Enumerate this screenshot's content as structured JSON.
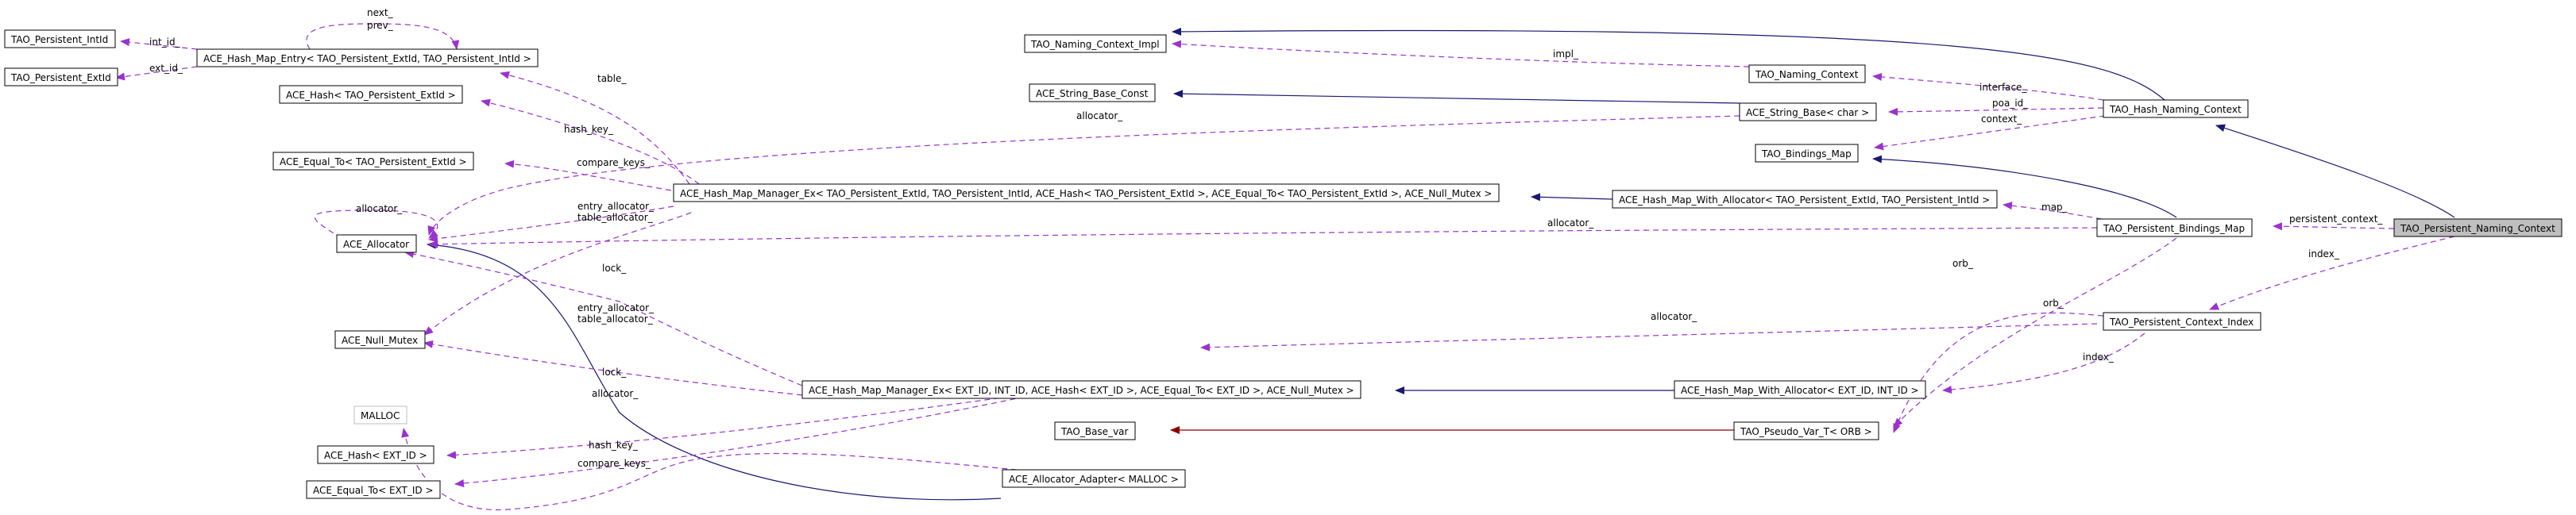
{
  "colors": {
    "inheritance": "#191970",
    "template": "#8b0000",
    "usage": "#9a32cd",
    "focus_fill": "#bfbfbf"
  },
  "nodes": {
    "persistent_intid": "TAO_Persistent_IntId",
    "persistent_extid": "TAO_Persistent_ExtId",
    "hash_map_entry": "ACE_Hash_Map_Entry< TAO_Persistent_ExtId, TAO_Persistent_IntId >",
    "ace_hash_extid": "ACE_Hash< TAO_Persistent_ExtId >",
    "ace_equal_to_extid": "ACE_Equal_To< TAO_Persistent_ExtId >",
    "ace_allocator": "ACE_Allocator",
    "ace_null_mutex": "ACE_Null_Mutex",
    "malloc": "MALLOC",
    "ace_hash_ext_id": "ACE_Hash< EXT_ID >",
    "ace_equal_to_ext_id": "ACE_Equal_To< EXT_ID >",
    "naming_context_impl": "TAO_Naming_Context_Impl",
    "string_base_const": "ACE_String_Base_Const",
    "naming_context": "TAO_Naming_Context",
    "string_base_char": "ACE_String_Base< char >",
    "bindings_map": "TAO_Bindings_Map",
    "hash_naming_context": "TAO_Hash_Naming_Context",
    "hash_map_manager_ex_persistent": "ACE_Hash_Map_Manager_Ex< TAO_Persistent_ExtId, TAO_Persistent_IntId, ACE_Hash< TAO_Persistent_ExtId >, ACE_Equal_To< TAO_Persistent_ExtId >, ACE_Null_Mutex >",
    "hash_map_with_allocator_persistent": "ACE_Hash_Map_With_Allocator< TAO_Persistent_ExtId, TAO_Persistent_IntId >",
    "persistent_bindings_map": "TAO_Persistent_Bindings_Map",
    "persistent_naming_context": "TAO_Persistent_Naming_Context",
    "tao_base_var": "TAO_Base_var",
    "pseudo_var_orb": "TAO_Pseudo_Var_T< ORB >",
    "allocator_adapter_malloc": "ACE_Allocator_Adapter< MALLOC >",
    "persistent_context_index": "TAO_Persistent_Context_Index",
    "hash_map_manager_ex_generic": "ACE_Hash_Map_Manager_Ex< EXT_ID, INT_ID, ACE_Hash< EXT_ID >, ACE_Equal_To< EXT_ID >, ACE_Null_Mutex >",
    "hash_map_with_allocator_generic": "ACE_Hash_Map_With_Allocator< EXT_ID, INT_ID >"
  },
  "edge_labels": {
    "next_prev": "next_\nprev_",
    "int_id": "int_id_",
    "ext_id": "ext_id_",
    "table": "table_",
    "hash_key": "hash_key_",
    "compare_keys": "compare_keys_",
    "allocator_self": "allocator_",
    "allocator_string": "allocator_",
    "entry_table_allocator": "entry_allocator_\ntable_allocator_",
    "lock": "lock_",
    "allocator_map": "allocator_",
    "entry_table_allocator_generic": "entry_allocator_\ntable_allocator_",
    "lock_generic": "lock_",
    "allocator_malloc": "allocator_",
    "hash_key_generic": "hash_key_",
    "compare_keys_generic": "compare_keys_",
    "impl": "impl_",
    "interface": "interface_",
    "poa_id": "poa_id_",
    "context": "context_",
    "map": "map_",
    "persistent_context": "persistent_context_",
    "index_top": "index_",
    "orb_1": "orb_",
    "orb_2": "orb_",
    "allocator_index": "allocator_",
    "index_bottom": "index_"
  }
}
